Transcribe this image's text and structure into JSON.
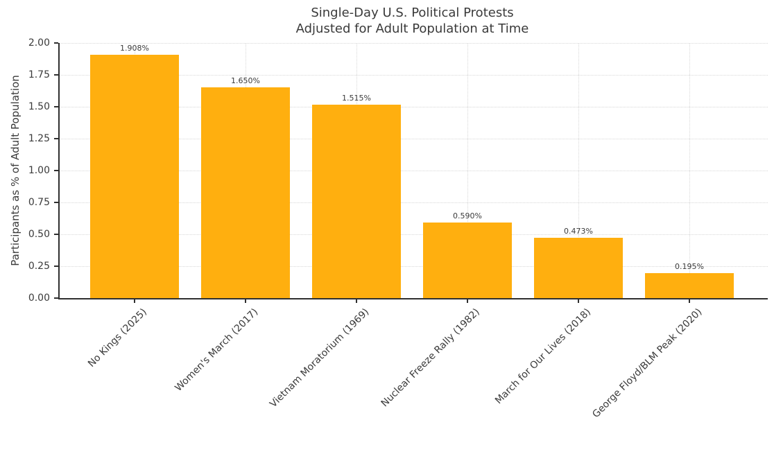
{
  "title": {
    "line1": "Single-Day U.S. Political Protests",
    "line2": "Adjusted for Adult Population at Time"
  },
  "chart_data": {
    "type": "bar",
    "title": "Single-Day U.S. Political Protests\nAdjusted for Adult Population at Time",
    "categories": [
      "No Kings (2025)",
      "Women's March (2017)",
      "Vietnam Moratorium (1969)",
      "Nuclear Freeze Rally (1982)",
      "March for Our Lives (2018)",
      "George Floyd/BLM Peak (2020)"
    ],
    "values": [
      1.908,
      1.65,
      1.515,
      0.59,
      0.473,
      0.195
    ],
    "bar_labels": [
      "1.908%",
      "1.650%",
      "1.515%",
      "0.590%",
      "0.473%",
      "0.195%"
    ],
    "xlabel": "",
    "ylabel": "Participants as % of Adult Population",
    "ylim": [
      0,
      2.0
    ],
    "ytick_labels": [
      "0.00",
      "0.25",
      "0.50",
      "0.75",
      "1.00",
      "1.25",
      "1.50",
      "1.75",
      "2.00"
    ],
    "grid": "dotted, horizontal and vertical at bar centers",
    "legend": "none",
    "colors": {
      "bar": "#FFAF0F",
      "text": "#3A3A3A",
      "grid": "#D7D7D7",
      "axis": "#2F2F2F",
      "background": "#FFFFFF"
    }
  }
}
